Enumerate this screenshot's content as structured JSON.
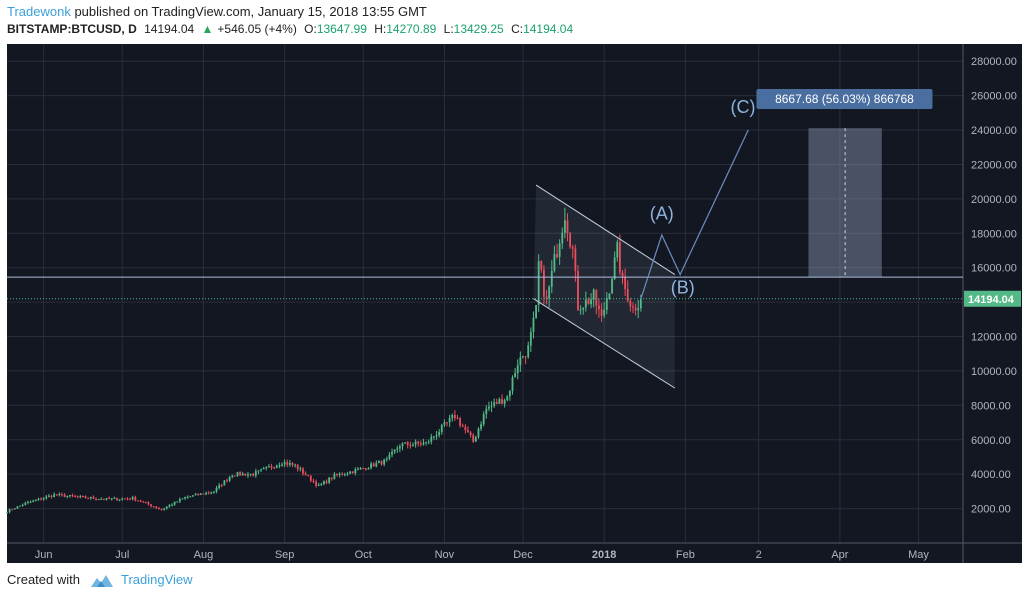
{
  "header": {
    "author": "Tradewonk",
    "published": "published on TradingView.com, January 15, 2018 13:55 GMT",
    "symbol": "BITSTAMP:BTCUSD, D",
    "last": "14194.04",
    "change": "+546.05 (+4%)",
    "open_label": "O:",
    "open": "13647.99",
    "high_label": "H:",
    "high": "14270.89",
    "low_label": "L:",
    "low": "13429.25",
    "close_label": "C:",
    "close": "14194.04"
  },
  "footer": {
    "created_with": "Created with",
    "brand": "TradingView"
  },
  "colors": {
    "background": "#131722",
    "grid": "#2a2e39",
    "bull": "#53b987",
    "bear": "#eb4d5c",
    "drawing": "#6c8ebf",
    "label_bg": "#4a6ea0",
    "price_badge": "#53b987"
  },
  "chart_data": {
    "type": "candlestick",
    "x_ticks": [
      "Jun",
      "Jul",
      "Aug",
      "Sep",
      "Oct",
      "Nov",
      "Dec",
      "2018",
      "Feb",
      "2",
      "Apr",
      "May"
    ],
    "y_ticks": [
      "28000.00",
      "26000.00",
      "24000.00",
      "22000.00",
      "20000.00",
      "18000.00",
      "16000.00",
      "14000.00",
      "12000.00",
      "10000.00",
      "8000.00",
      "6000.00",
      "4000.00",
      "2000.00"
    ],
    "ylim": [
      0,
      29000
    ],
    "last_price_label": "14194.04",
    "price_path": [
      [
        "2017-05-18",
        1850
      ],
      [
        "2017-05-25",
        2300
      ],
      [
        "2017-06-05",
        2800
      ],
      [
        "2017-06-12",
        2700
      ],
      [
        "2017-06-25",
        2550
      ],
      [
        "2017-07-05",
        2600
      ],
      [
        "2017-07-16",
        1950
      ],
      [
        "2017-07-25",
        2650
      ],
      [
        "2017-08-05",
        3000
      ],
      [
        "2017-08-12",
        4000
      ],
      [
        "2017-08-20",
        4000
      ],
      [
        "2017-08-31",
        4700
      ],
      [
        "2017-09-05",
        4500
      ],
      [
        "2017-09-14",
        3300
      ],
      [
        "2017-09-20",
        3900
      ],
      [
        "2017-09-30",
        4300
      ],
      [
        "2017-10-10",
        4800
      ],
      [
        "2017-10-15",
        5700
      ],
      [
        "2017-10-25",
        5800
      ],
      [
        "2017-11-05",
        7400
      ],
      [
        "2017-11-12",
        5900
      ],
      [
        "2017-11-17",
        7800
      ],
      [
        "2017-11-25",
        8500
      ],
      [
        "2017-11-29",
        10500
      ],
      [
        "2017-12-03",
        11300
      ],
      [
        "2017-12-06",
        13500
      ],
      [
        "2017-12-07",
        16200
      ],
      [
        "2017-12-10",
        14000
      ],
      [
        "2017-12-13",
        16400
      ],
      [
        "2017-12-17",
        19200
      ],
      [
        "2017-12-20",
        17000
      ],
      [
        "2017-12-22",
        13800
      ],
      [
        "2017-12-25",
        14000
      ],
      [
        "2017-12-28",
        14300
      ],
      [
        "2017-12-31",
        13000
      ],
      [
        "2018-01-03",
        14900
      ],
      [
        "2018-01-06",
        17000
      ],
      [
        "2018-01-08",
        15100
      ],
      [
        "2018-01-10",
        14400
      ],
      [
        "2018-01-12",
        13600
      ],
      [
        "2018-01-15",
        14194
      ]
    ],
    "channel": {
      "upper": [
        [
          "2017-12-06",
          20800
        ],
        [
          "2018-01-28",
          15600
        ]
      ],
      "lower": [
        [
          "2017-12-05",
          14200
        ],
        [
          "2018-01-28",
          9000
        ]
      ]
    },
    "wave_path": [
      [
        "2018-01-15",
        14194
      ],
      [
        "2018-01-23",
        17900
      ],
      [
        "2018-01-30",
        15600
      ],
      [
        "2018-02-25",
        24000
      ]
    ],
    "wave_labels": [
      {
        "text": "(A)",
        "x": "2018-01-23",
        "y": 18800
      },
      {
        "text": "(B)",
        "x": "2018-01-31",
        "y": 14500
      },
      {
        "text": "(C)",
        "x": "2018-02-23",
        "y": 25000
      }
    ],
    "horizontal_line": 15450,
    "measure_box": {
      "x0": "2018-03-20",
      "x1": "2018-04-17",
      "y0": 15450,
      "y1": 24110
    },
    "measure_label": "8667.68 (56.03%) 866768"
  }
}
